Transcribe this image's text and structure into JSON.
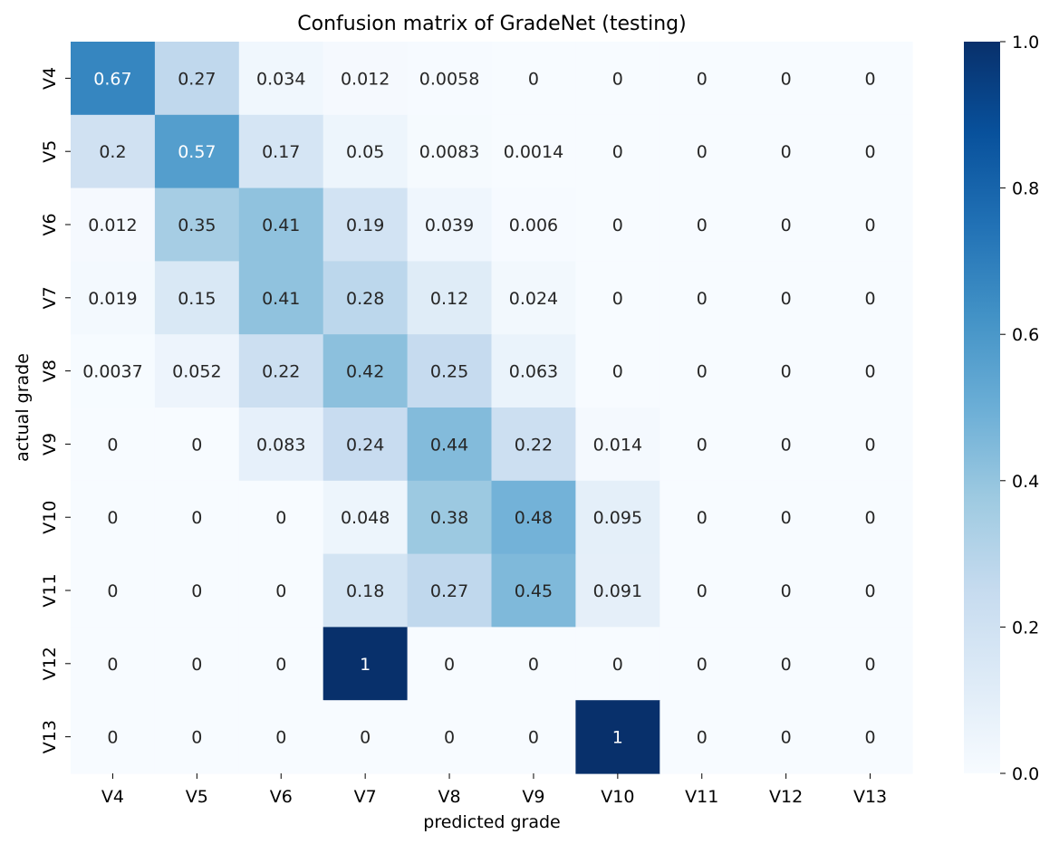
{
  "chart_data": {
    "type": "heatmap",
    "title": "Confusion matrix of GradeNet (testing)",
    "xlabel": "predicted grade",
    "ylabel": "actual grade",
    "x_categories": [
      "V4",
      "V5",
      "V6",
      "V7",
      "V8",
      "V9",
      "V10",
      "V11",
      "V12",
      "V13"
    ],
    "y_categories": [
      "V4",
      "V5",
      "V6",
      "V7",
      "V8",
      "V9",
      "V10",
      "V11",
      "V12",
      "V13"
    ],
    "values": [
      [
        "0.67",
        "0.27",
        "0.034",
        "0.012",
        "0.0058",
        "0",
        "0",
        "0",
        "0",
        "0"
      ],
      [
        "0.2",
        "0.57",
        "0.17",
        "0.05",
        "0.0083",
        "0.0014",
        "0",
        "0",
        "0",
        "0"
      ],
      [
        "0.012",
        "0.35",
        "0.41",
        "0.19",
        "0.039",
        "0.006",
        "0",
        "0",
        "0",
        "0"
      ],
      [
        "0.019",
        "0.15",
        "0.41",
        "0.28",
        "0.12",
        "0.024",
        "0",
        "0",
        "0",
        "0"
      ],
      [
        "0.0037",
        "0.052",
        "0.22",
        "0.42",
        "0.25",
        "0.063",
        "0",
        "0",
        "0",
        "0"
      ],
      [
        "0",
        "0",
        "0.083",
        "0.24",
        "0.44",
        "0.22",
        "0.014",
        "0",
        "0",
        "0"
      ],
      [
        "0",
        "0",
        "0",
        "0.048",
        "0.38",
        "0.48",
        "0.095",
        "0",
        "0",
        "0"
      ],
      [
        "0",
        "0",
        "0",
        "0.18",
        "0.27",
        "0.45",
        "0.091",
        "0",
        "0",
        "0"
      ],
      [
        "0",
        "0",
        "0",
        "1",
        "0",
        "0",
        "0",
        "0",
        "0",
        "0"
      ],
      [
        "0",
        "0",
        "0",
        "0",
        "0",
        "0",
        "1",
        "0",
        "0",
        "0"
      ]
    ],
    "colorbar": {
      "range": [
        0,
        1
      ],
      "ticks": [
        "0.0",
        "0.2",
        "0.4",
        "0.6",
        "0.8",
        "1.0"
      ],
      "colormap": "Blues"
    },
    "grid": false
  }
}
